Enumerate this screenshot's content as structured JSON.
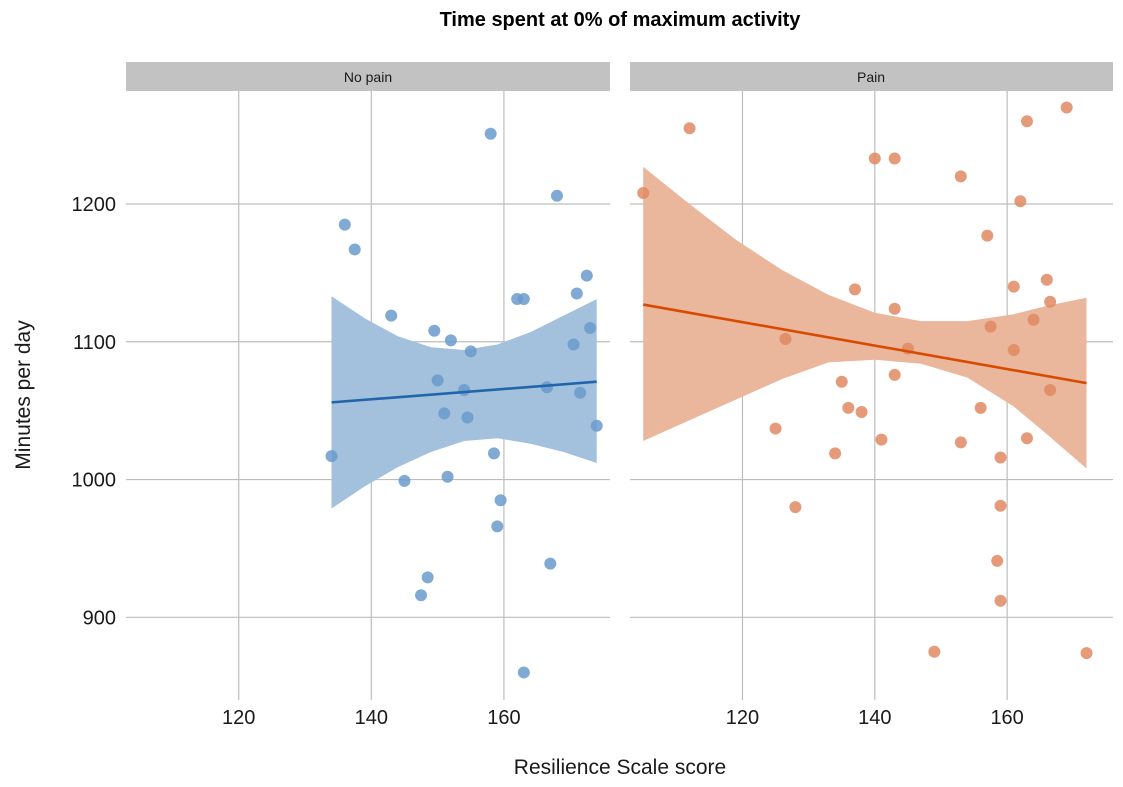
{
  "chart_data": {
    "type": "scatter",
    "title": "Time spent at 0% of maximum activity",
    "xlabel": "Resilience Scale score",
    "ylabel": "Minutes per day",
    "xlim": [
      103,
      176
    ],
    "ylim": [
      840,
      1282
    ],
    "x_ticks": [
      "120",
      "140",
      "160"
    ],
    "y_ticks": [
      "900",
      "1000",
      "1100",
      "1200"
    ],
    "grid": true,
    "legend": "none",
    "panels": [
      {
        "label": "No pain",
        "color": "#2166ac",
        "point_color": "#6a9bcc",
        "band_color": "#a3c0dc",
        "points": [
          [
            134,
            1017
          ],
          [
            136,
            1185
          ],
          [
            137.5,
            1167
          ],
          [
            143,
            1119
          ],
          [
            145,
            999
          ],
          [
            147.5,
            916
          ],
          [
            148.5,
            929
          ],
          [
            149.5,
            1108
          ],
          [
            150,
            1072
          ],
          [
            151,
            1048
          ],
          [
            151.5,
            1002
          ],
          [
            152,
            1101
          ],
          [
            154,
            1065
          ],
          [
            154.5,
            1045
          ],
          [
            155,
            1093
          ],
          [
            158,
            1251
          ],
          [
            158.5,
            1019
          ],
          [
            159,
            966
          ],
          [
            159.5,
            985
          ],
          [
            162,
            1131
          ],
          [
            163,
            1131
          ],
          [
            163,
            860
          ],
          [
            166.5,
            1067
          ],
          [
            167,
            939
          ],
          [
            168,
            1206
          ],
          [
            170.5,
            1098
          ],
          [
            171,
            1135
          ],
          [
            171.5,
            1063
          ],
          [
            172.5,
            1148
          ],
          [
            173,
            1110
          ],
          [
            174,
            1039
          ]
        ],
        "fit": {
          "x": [
            134,
            174
          ],
          "y": [
            1056,
            1071
          ]
        },
        "ci": {
          "x": [
            134,
            139,
            144,
            149,
            154,
            159,
            164,
            169,
            174
          ],
          "upper": [
            1133,
            1117,
            1104,
            1096,
            1094,
            1098,
            1107,
            1119,
            1131
          ],
          "lower": [
            979,
            995,
            1009,
            1020,
            1028,
            1030,
            1026,
            1020,
            1012
          ]
        }
      },
      {
        "label": "Pain",
        "color": "#d84a00",
        "point_color": "#e08a61",
        "band_color": "#eab69c",
        "points": [
          [
            105,
            1208
          ],
          [
            112,
            1255
          ],
          [
            125,
            1037
          ],
          [
            126.5,
            1102
          ],
          [
            128,
            980
          ],
          [
            134,
            1019
          ],
          [
            135,
            1071
          ],
          [
            136,
            1052
          ],
          [
            137,
            1138
          ],
          [
            138,
            1049
          ],
          [
            140,
            1233
          ],
          [
            141,
            1029
          ],
          [
            143,
            1233
          ],
          [
            143,
            1124
          ],
          [
            143,
            1076
          ],
          [
            145,
            1095
          ],
          [
            149,
            875
          ],
          [
            153,
            1220
          ],
          [
            153,
            1027
          ],
          [
            156,
            1052
          ],
          [
            157,
            1177
          ],
          [
            157.5,
            1111
          ],
          [
            158.5,
            941
          ],
          [
            159,
            912
          ],
          [
            159,
            981
          ],
          [
            159,
            1016
          ],
          [
            161,
            1094
          ],
          [
            161,
            1140
          ],
          [
            162,
            1202
          ],
          [
            163,
            1260
          ],
          [
            163,
            1030
          ],
          [
            164,
            1116
          ],
          [
            166,
            1145
          ],
          [
            166.5,
            1129
          ],
          [
            166.5,
            1065
          ],
          [
            169,
            1270
          ],
          [
            172,
            874
          ]
        ],
        "fit": {
          "x": [
            105,
            172
          ],
          "y": [
            1127,
            1070
          ]
        },
        "ci": {
          "x": [
            105,
            112,
            119,
            126,
            133,
            140,
            147,
            154,
            161,
            166,
            172
          ],
          "upper": [
            1227,
            1200,
            1174,
            1152,
            1134,
            1121,
            1115,
            1115,
            1120,
            1126,
            1132
          ],
          "lower": [
            1028,
            1043,
            1058,
            1073,
            1085,
            1087,
            1084,
            1074,
            1053,
            1033,
            1008
          ]
        }
      }
    ]
  }
}
